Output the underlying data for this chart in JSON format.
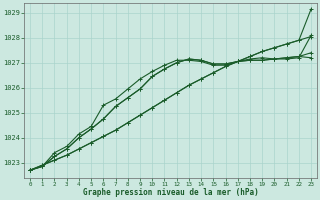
{
  "title": "Graphe pression niveau de la mer (hPa)",
  "background_color": "#cce8e0",
  "grid_color": "#aad4cc",
  "line_color": "#1a5c2a",
  "xlim": [
    -0.5,
    23.5
  ],
  "ylim": [
    1022.4,
    1029.4
  ],
  "yticks": [
    1023,
    1024,
    1025,
    1026,
    1027,
    1028,
    1029
  ],
  "xticks": [
    0,
    1,
    2,
    3,
    4,
    5,
    6,
    7,
    8,
    9,
    10,
    11,
    12,
    13,
    14,
    15,
    16,
    17,
    18,
    19,
    20,
    21,
    22,
    23
  ],
  "series": [
    [
      1022.7,
      1022.9,
      1023.1,
      1023.3,
      1023.55,
      1023.8,
      1024.05,
      1024.3,
      1024.6,
      1024.9,
      1025.2,
      1025.5,
      1025.8,
      1026.1,
      1026.35,
      1026.6,
      1026.85,
      1027.05,
      1027.25,
      1027.45,
      1027.6,
      1027.75,
      1027.9,
      1028.05
    ],
    [
      1022.7,
      1022.85,
      1023.25,
      1023.55,
      1024.0,
      1024.35,
      1024.75,
      1025.25,
      1025.6,
      1025.95,
      1026.45,
      1026.75,
      1027.0,
      1027.15,
      1027.1,
      1026.95,
      1026.95,
      1027.05,
      1027.1,
      1027.1,
      1027.15,
      1027.2,
      1027.25,
      1027.2
    ],
    [
      1022.7,
      1022.85,
      1023.25,
      1023.55,
      1024.0,
      1024.35,
      1024.75,
      1025.25,
      1025.6,
      1025.95,
      1026.45,
      1026.75,
      1027.0,
      1027.15,
      1027.1,
      1026.95,
      1026.95,
      1027.05,
      1027.1,
      1027.1,
      1027.15,
      1027.2,
      1027.25,
      1027.4
    ],
    [
      1022.7,
      1022.85,
      1023.4,
      1023.65,
      1024.15,
      1024.45,
      1025.3,
      1025.55,
      1025.95,
      1026.35,
      1026.65,
      1026.9,
      1027.1,
      1027.1,
      1027.05,
      1026.9,
      1026.9,
      1027.05,
      1027.15,
      1027.2,
      1027.15,
      1027.15,
      1027.2,
      1028.1
    ]
  ],
  "series2": [
    [
      1022.7,
      1022.9,
      1023.1,
      1023.3,
      1023.55,
      1023.8,
      1024.05,
      1024.3,
      1024.6,
      1024.9,
      1025.2,
      1025.5,
      1025.8,
      1026.1,
      1026.35,
      1026.6,
      1026.85,
      1027.05,
      1027.25,
      1027.45,
      1027.6,
      1027.75,
      1027.9,
      1029.15
    ]
  ],
  "marker": "+",
  "markersize": 3,
  "linewidth": 0.8
}
